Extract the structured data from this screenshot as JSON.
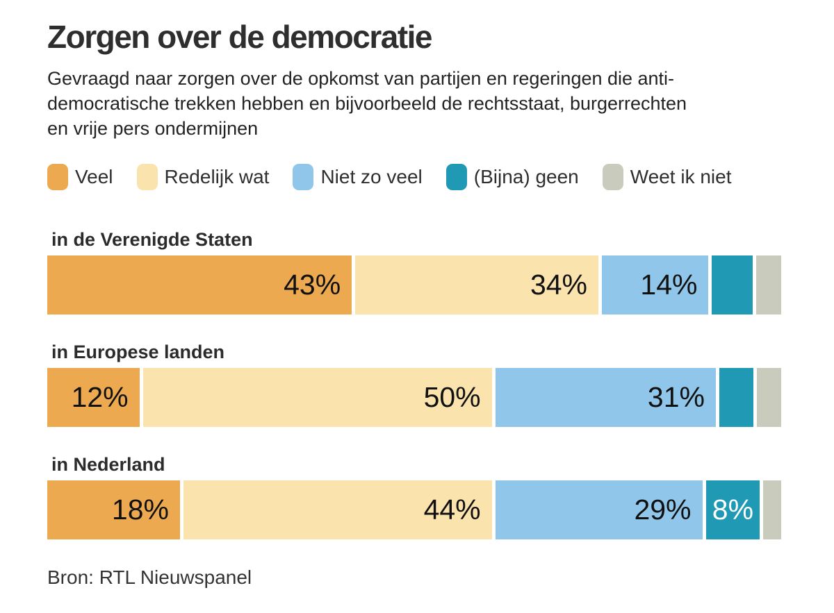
{
  "chart_data": {
    "type": "bar",
    "variant": "horizontal-stacked-percent",
    "title": "Zorgen over de democratie",
    "subtitle": "Gevraagd naar zorgen over de opkomst van partijen en regeringen die anti-\ndemocratische trekken hebben en bijvoorbeeld de rechtsstaat, burgerrechten\nen vrije pers ondermijnen",
    "categories": [
      "in de Verenigde Staten",
      "in Europese landen",
      "in Nederland"
    ],
    "series": [
      {
        "name": "Veel",
        "color": "#ECA950",
        "values": [
          43,
          12,
          18
        ],
        "value_label_color": "#111111",
        "value_label_align": "right"
      },
      {
        "name": "Redelijk wat",
        "color": "#FBE3AD",
        "values": [
          34,
          50,
          44
        ],
        "value_label_color": "#111111",
        "value_label_align": "right"
      },
      {
        "name": "Niet zo veel",
        "color": "#90C6E9",
        "values": [
          14,
          31,
          29
        ],
        "value_label_color": "#111111",
        "value_label_align": "right"
      },
      {
        "name": "(Bijna) geen",
        "color": "#1F99B4",
        "values": [
          6,
          5,
          8
        ],
        "value_label_color": "#ffffff",
        "value_label_align": "center"
      },
      {
        "name": "Weet ik niet",
        "color": "#C9CCBC",
        "values": [
          2,
          2,
          1
        ],
        "value_label_color": "#111111",
        "value_label_align": "right"
      }
    ],
    "value_label_suffix": "%",
    "value_label_min_show": 8,
    "xlim": [
      0,
      100
    ],
    "grid": false,
    "legend_position": "top",
    "source": "Bron: RTL Nieuwspanel"
  }
}
